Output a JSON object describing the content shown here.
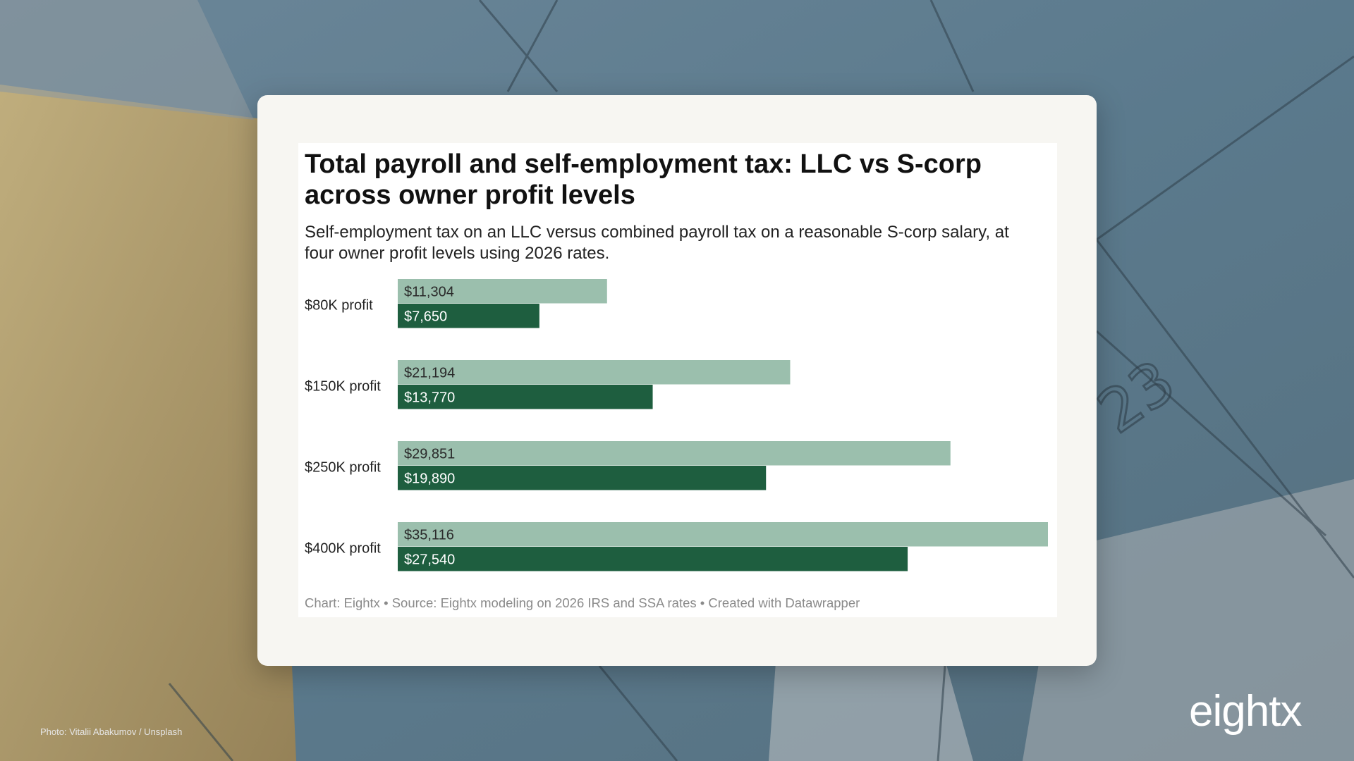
{
  "photo_credit": "Photo: Vitalii Abakumov / Unsplash",
  "logo_text": "eightx",
  "calendar_number": "23",
  "colors": {
    "llc": "#9bbfad",
    "scorp": "#1e5e3f",
    "card_bg": "#f7f6f2",
    "footer_text": "#8a8a8a"
  },
  "chart_data": {
    "type": "bar",
    "orientation": "horizontal",
    "title": "Total payroll and self-employment tax: LLC vs S-corp across owner profit levels",
    "subtitle": "Self-employment tax on an LLC versus combined payroll tax on a reasonable S-corp salary, at four owner profit levels using 2026 rates.",
    "categories": [
      "$80K profit",
      "$150K profit",
      "$250K profit",
      "$400K profit"
    ],
    "series": [
      {
        "values": [
          11304,
          21194,
          29851,
          35116
        ],
        "labels": [
          "$11,304",
          "$21,194",
          "$29,851",
          "$35,116"
        ],
        "color": "#9bbfad"
      },
      {
        "values": [
          7650,
          13770,
          19890,
          27540
        ],
        "labels": [
          "$7,650",
          "$13,770",
          "$19,890",
          "$27,540"
        ],
        "color": "#1e5e3f"
      }
    ],
    "xlim": [
      0,
      35116
    ],
    "grid": false,
    "footer": "Chart: Eightx • Source: Eightx modeling on 2026 IRS and SSA rates • Created with Datawrapper"
  }
}
